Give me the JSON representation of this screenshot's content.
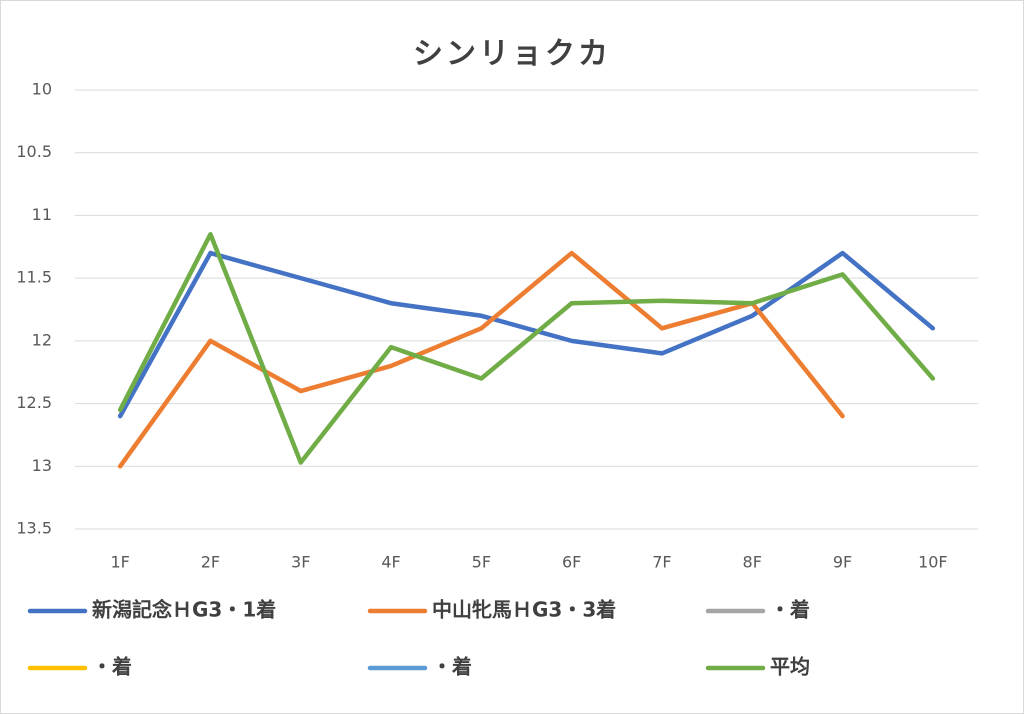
{
  "chart_data": {
    "type": "line",
    "title": "シンリョクカ",
    "categories": [
      "1F",
      "2F",
      "3F",
      "4F",
      "5F",
      "6F",
      "7F",
      "8F",
      "9F",
      "10F"
    ],
    "series": [
      {
        "name": "新潟記念ＨG3・1着",
        "color": "#4472c4",
        "values": [
          12.6,
          11.3,
          11.5,
          11.7,
          11.8,
          12.0,
          12.1,
          11.8,
          11.3,
          11.9
        ]
      },
      {
        "name": "中山牝馬ＨG3・3着",
        "color": "#ed7d31",
        "values": [
          13.0,
          12.0,
          12.4,
          12.2,
          11.9,
          11.3,
          11.9,
          11.7,
          12.6,
          null
        ]
      },
      {
        "name": "・着",
        "color": "#a5a5a5",
        "values": [
          null,
          null,
          null,
          null,
          null,
          null,
          null,
          null,
          null,
          null
        ]
      },
      {
        "name": "・着",
        "color": "#ffc000",
        "values": [
          null,
          null,
          null,
          null,
          null,
          null,
          null,
          null,
          null,
          null
        ]
      },
      {
        "name": "・着",
        "color": "#5b9bd5",
        "values": [
          null,
          null,
          null,
          null,
          null,
          null,
          null,
          null,
          null,
          null
        ]
      },
      {
        "name": "平均",
        "color": "#70ad47",
        "values": [
          12.55,
          11.15,
          12.97,
          12.05,
          12.3,
          11.7,
          11.68,
          11.7,
          11.47,
          12.3
        ]
      }
    ],
    "ylim": [
      10,
      13.5
    ],
    "y_inverted": true,
    "yticks": [
      10,
      10.5,
      11,
      11.5,
      12,
      12.5,
      13,
      13.5
    ],
    "grid": true,
    "legend": "bottom"
  }
}
